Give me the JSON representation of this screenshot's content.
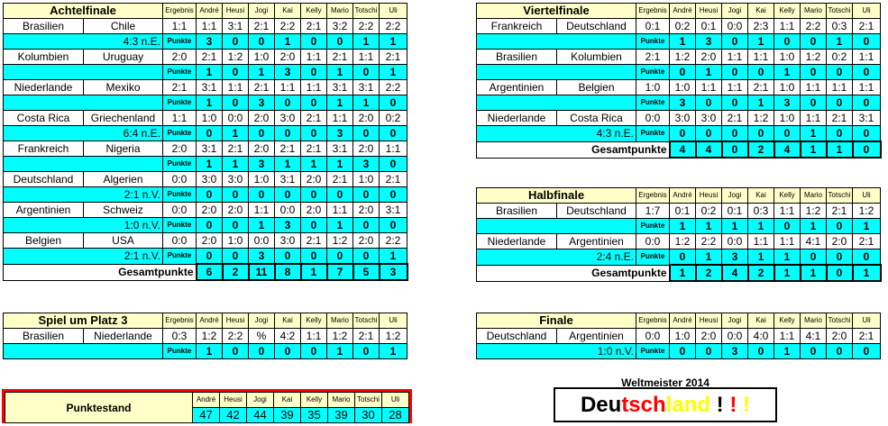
{
  "players": [
    "André",
    "Heusi",
    "Jogi",
    "Kai",
    "Kelly",
    "Mario",
    "Totschi",
    "Uli"
  ],
  "result_label": "Ergebnis",
  "points_label": "Punkte",
  "total_label": "Gesamtpunkte",
  "rounds": [
    {
      "id": "achtelfinale",
      "title": "Achtelfinale",
      "matches": [
        {
          "team1": "Brasilien",
          "team2": "Chile",
          "result": "1:1",
          "note": "4:3 n.E.",
          "tips": [
            "1:1",
            "3:1",
            "2:1",
            "2:2",
            "2:1",
            "3:2",
            "2:2",
            "2:2"
          ],
          "points": [
            "3",
            "0",
            "0",
            "1",
            "0",
            "0",
            "1",
            "1"
          ]
        },
        {
          "team1": "Kolumbien",
          "team2": "Uruguay",
          "result": "2:0",
          "note": "",
          "tips": [
            "2:1",
            "1:2",
            "1:0",
            "2:0",
            "1:1",
            "2:1",
            "1:1",
            "2:1"
          ],
          "points": [
            "1",
            "0",
            "1",
            "3",
            "0",
            "1",
            "0",
            "1"
          ]
        },
        {
          "team1": "Niederlande",
          "team2": "Mexiko",
          "result": "2:1",
          "note": "",
          "tips": [
            "3:1",
            "1:1",
            "2:1",
            "1:1",
            "1:1",
            "3:1",
            "3:1",
            "2:2"
          ],
          "points": [
            "1",
            "0",
            "3",
            "0",
            "0",
            "1",
            "1",
            "0"
          ]
        },
        {
          "team1": "Costa Rica",
          "team2": "Griechenland",
          "result": "1:1",
          "note": "6:4 n.E.",
          "tips": [
            "1:0",
            "0:0",
            "2:0",
            "3:0",
            "2:1",
            "1:1",
            "2:0",
            "0:2"
          ],
          "points": [
            "0",
            "1",
            "0",
            "0",
            "0",
            "3",
            "0",
            "0"
          ]
        },
        {
          "team1": "Frankreich",
          "team2": "Nigeria",
          "result": "2:0",
          "note": "",
          "tips": [
            "3:1",
            "2:1",
            "2:0",
            "2:1",
            "2:1",
            "3:1",
            "2:0",
            "1:1"
          ],
          "points": [
            "1",
            "1",
            "3",
            "1",
            "1",
            "1",
            "3",
            "0"
          ]
        },
        {
          "team1": "Deutschland",
          "team2": "Algerien",
          "result": "0:0",
          "note": "2:1 n.V.",
          "tips": [
            "3:0",
            "3:0",
            "1:0",
            "3:1",
            "2:0",
            "2:1",
            "1:0",
            "2:1"
          ],
          "points": [
            "0",
            "0",
            "0",
            "0",
            "0",
            "0",
            "0",
            "0"
          ]
        },
        {
          "team1": "Argentinien",
          "team2": "Schweiz",
          "result": "0:0",
          "note": "1:0 n.V.",
          "tips": [
            "2:0",
            "2:0",
            "1:1",
            "0:0",
            "2:0",
            "1:1",
            "2:0",
            "3:1"
          ],
          "points": [
            "0",
            "0",
            "1",
            "3",
            "0",
            "1",
            "0",
            "0"
          ]
        },
        {
          "team1": "Belgien",
          "team2": "USA",
          "result": "0:0",
          "note": "2:1 n.V.",
          "tips": [
            "2:0",
            "1:0",
            "0:0",
            "3:0",
            "2:1",
            "1:2",
            "2:0",
            "2:2"
          ],
          "points": [
            "0",
            "0",
            "3",
            "0",
            "0",
            "0",
            "0",
            "1"
          ]
        }
      ],
      "total": [
        "6",
        "2",
        "11",
        "8",
        "1",
        "7",
        "5",
        "3"
      ]
    },
    {
      "id": "viertelfinale",
      "title": "Viertelfinale",
      "matches": [
        {
          "team1": "Frankreich",
          "team2": "Deutschland",
          "result": "0:1",
          "note": "",
          "tips": [
            "0:2",
            "0:1",
            "0:0",
            "2:3",
            "1:1",
            "2:2",
            "0:3",
            "2:1"
          ],
          "points": [
            "1",
            "3",
            "0",
            "1",
            "0",
            "0",
            "1",
            "0"
          ]
        },
        {
          "team1": "Brasilien",
          "team2": "Kolumbien",
          "result": "2:1",
          "note": "",
          "tips": [
            "1:2",
            "2:0",
            "1:1",
            "1:1",
            "1:0",
            "1:2",
            "0:2",
            "1:1"
          ],
          "points": [
            "0",
            "1",
            "0",
            "0",
            "1",
            "0",
            "0",
            "0"
          ]
        },
        {
          "team1": "Argentinien",
          "team2": "Belgien",
          "result": "1:0",
          "note": "",
          "tips": [
            "1:0",
            "1:1",
            "1:1",
            "2:1",
            "1:0",
            "1:1",
            "1:1",
            "1:1"
          ],
          "points": [
            "3",
            "0",
            "0",
            "1",
            "3",
            "0",
            "0",
            "0"
          ]
        },
        {
          "team1": "Niederlande",
          "team2": "Costa Rica",
          "result": "0:0",
          "note": "4:3 n.E.",
          "tips": [
            "3:0",
            "3:0",
            "2:1",
            "1:2",
            "1:0",
            "1:1",
            "2:1",
            "3:1"
          ],
          "points": [
            "0",
            "0",
            "0",
            "0",
            "0",
            "1",
            "0",
            "0"
          ]
        }
      ],
      "total": [
        "4",
        "4",
        "0",
        "2",
        "4",
        "1",
        "1",
        "0"
      ]
    },
    {
      "id": "halbfinale",
      "title": "Halbfinale",
      "matches": [
        {
          "team1": "Brasilien",
          "team2": "Deutschland",
          "result": "1:7",
          "note": "",
          "tips": [
            "0:1",
            "0:2",
            "0:1",
            "0:3",
            "1:1",
            "1:2",
            "2:1",
            "1:2"
          ],
          "points": [
            "1",
            "1",
            "1",
            "1",
            "0",
            "1",
            "0",
            "1"
          ]
        },
        {
          "team1": "Niederlande",
          "team2": "Argentinien",
          "result": "0:0",
          "note": "2:4 n.E.",
          "tips": [
            "1:2",
            "2:2",
            "0:0",
            "1:1",
            "1:1",
            "4:1",
            "2:0",
            "2:1"
          ],
          "points": [
            "0",
            "1",
            "3",
            "1",
            "1",
            "0",
            "0",
            "0"
          ]
        }
      ],
      "total": [
        "1",
        "2",
        "4",
        "2",
        "1",
        "1",
        "0",
        "1"
      ]
    },
    {
      "id": "platz3",
      "title": "Spiel um Platz 3",
      "matches": [
        {
          "team1": "Brasilien",
          "team2": "Niederlande",
          "result": "0:3",
          "note": "",
          "tips": [
            "1:2",
            "2:2",
            "%",
            "4:2",
            "1:1",
            "1:2",
            "2:1",
            "1:2"
          ],
          "points": [
            "1",
            "0",
            "0",
            "0",
            "0",
            "1",
            "0",
            "1"
          ]
        }
      ]
    },
    {
      "id": "finale",
      "title": "Finale",
      "matches": [
        {
          "team1": "Deutschland",
          "team2": "Argentinien",
          "result": "0:0",
          "note": "1:0 n.V.",
          "tips": [
            "1:0",
            "2:0",
            "0:0",
            "4:0",
            "1:1",
            "4:1",
            "2:0",
            "2:1"
          ],
          "points": [
            "0",
            "0",
            "3",
            "0",
            "1",
            "0",
            "0",
            "0"
          ]
        }
      ]
    }
  ],
  "standings": {
    "label": "Punktestand",
    "totals": [
      "47",
      "42",
      "44",
      "39",
      "35",
      "39",
      "30",
      "28"
    ]
  },
  "champion": {
    "title": "Weltmeister 2014",
    "parts": [
      "Deu",
      "tsch",
      "land",
      " !",
      " !",
      " !"
    ],
    "colors": [
      "#000000",
      "#ff0000",
      "#ffff00",
      "#000000",
      "#ff0000",
      "#ffff00"
    ]
  }
}
